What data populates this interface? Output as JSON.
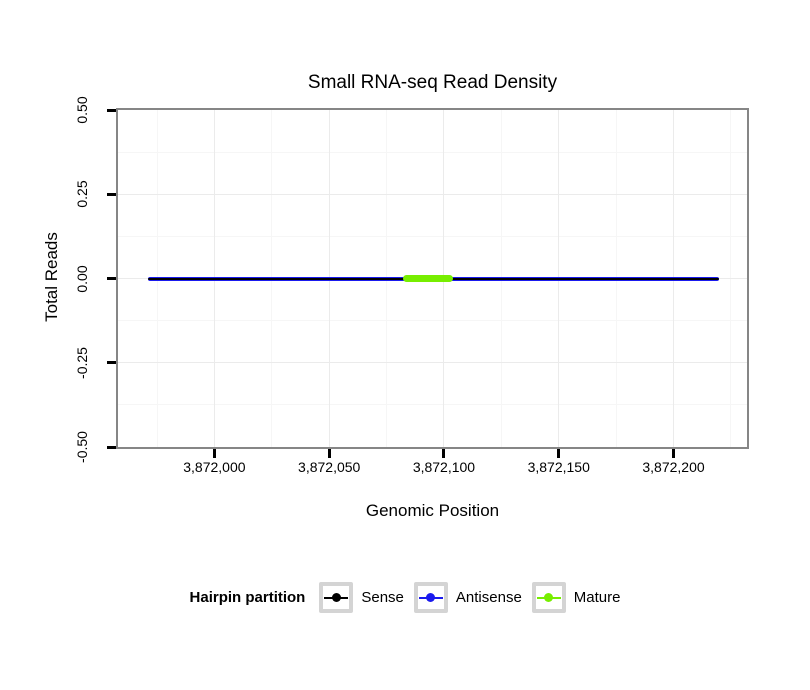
{
  "title": "Small RNA-seq Read Density",
  "axes": {
    "x": {
      "label": "Genomic Position",
      "tick_labels": [
        "3,872,000",
        "3,872,050",
        "3,872,100",
        "3,872,150",
        "3,872,200"
      ]
    },
    "y": {
      "label": "Total Reads",
      "tick_labels": [
        "0.50",
        "0.25",
        "0.00",
        "-0.25",
        "-0.50"
      ]
    }
  },
  "legend": {
    "title": "Hairpin partition",
    "items": [
      {
        "label": "Sense",
        "color": "#000000"
      },
      {
        "label": "Antisense",
        "color": "#1a1aee"
      },
      {
        "label": "Mature",
        "color": "#77ee00"
      }
    ]
  },
  "colors": {
    "panel_border": "#868686",
    "grid_major": "#ebebeb",
    "grid_minor": "#f6f6f6",
    "key_box_border": "#d4d4d4"
  },
  "chart_data": {
    "type": "line",
    "title": "Small RNA-seq Read Density",
    "xlabel": "Genomic Position",
    "ylabel": "Total Reads",
    "xlim": [
      3871958,
      3872232
    ],
    "ylim": [
      -0.5,
      0.5
    ],
    "x_ticks": [
      3872000,
      3872050,
      3872100,
      3872150,
      3872200
    ],
    "y_ticks": [
      0.5,
      0.25,
      0,
      -0.25,
      -0.5
    ],
    "x_grid_minor": [
      3871975,
      3872025,
      3872075,
      3872125,
      3872175,
      3872225
    ],
    "y_grid_minor": [
      -0.375,
      -0.125,
      0.125,
      0.375
    ],
    "grid": true,
    "legend_position": "bottom",
    "series": [
      {
        "name": "Antisense",
        "color": "#1a1aee",
        "x": [
          3871971,
          3872220
        ],
        "y": [
          0,
          0
        ]
      },
      {
        "name": "Sense",
        "color": "#000000",
        "x": [
          3871971,
          3872220
        ],
        "y": [
          0,
          0
        ]
      },
      {
        "name": "Mature",
        "color": "#77ee00",
        "x": [
          3872082,
          3872104
        ],
        "y": [
          0,
          0
        ]
      }
    ]
  }
}
